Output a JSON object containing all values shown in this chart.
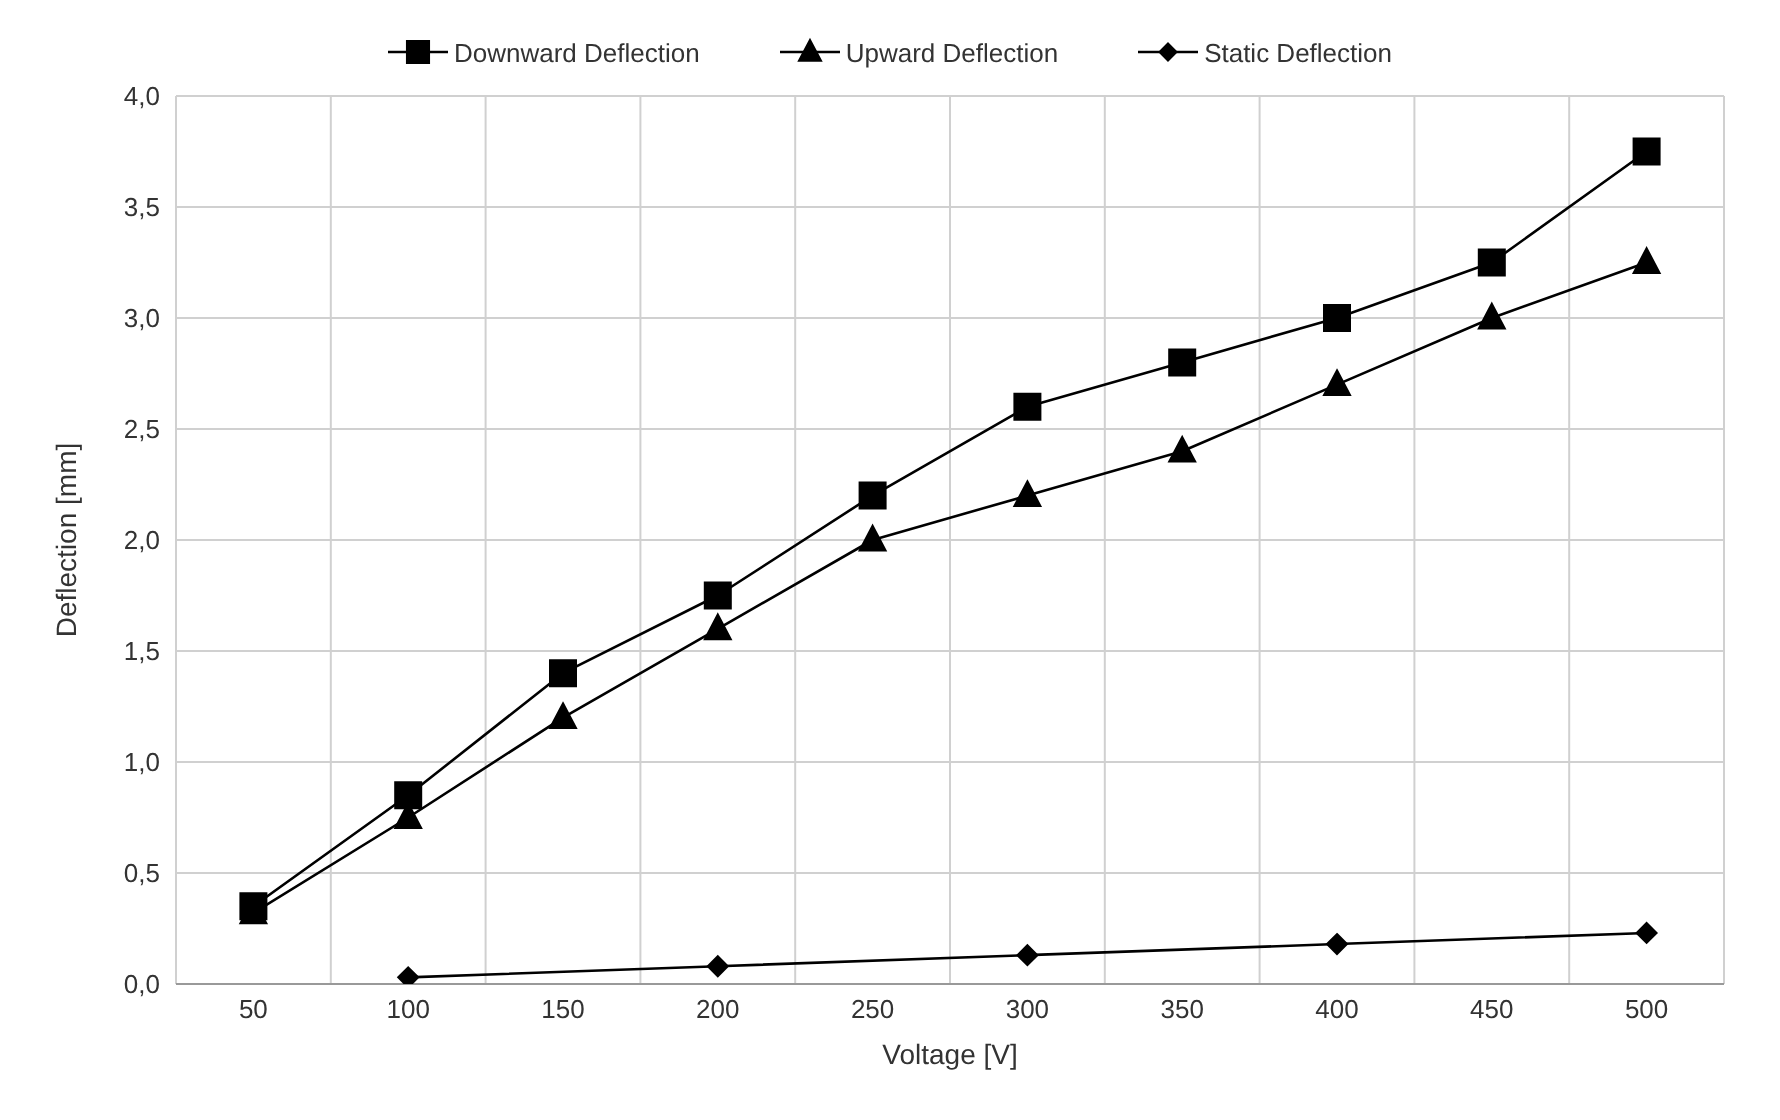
{
  "chart_data": {
    "type": "line",
    "xlabel": "Voltage [V]",
    "ylabel": "Deflection [mm]",
    "categories": [
      "50",
      "100",
      "150",
      "200",
      "250",
      "300",
      "350",
      "400",
      "450",
      "500"
    ],
    "series": [
      {
        "name": "Downward  Deflection",
        "color": "#000000",
        "marker": "square",
        "values": [
          0.35,
          0.85,
          1.4,
          1.75,
          2.2,
          2.6,
          2.8,
          3.0,
          3.25,
          3.75
        ]
      },
      {
        "name": "Upward Deflection",
        "color": "#000000",
        "marker": "triangle",
        "values": [
          0.32,
          0.75,
          1.2,
          1.6,
          2.0,
          2.2,
          2.4,
          2.7,
          3.0,
          3.25
        ]
      },
      {
        "name": "Static Deflection",
        "color": "#000000",
        "marker": "diamond",
        "values": [
          null,
          0.03,
          null,
          0.08,
          null,
          0.13,
          null,
          0.18,
          null,
          0.23
        ]
      }
    ],
    "ylim": [
      0,
      4
    ],
    "yticks": [
      {
        "value": 0,
        "label": "0,0"
      },
      {
        "value": 0.5,
        "label": "0,5"
      },
      {
        "value": 1,
        "label": "1,0"
      },
      {
        "value": 1.5,
        "label": "1,5"
      },
      {
        "value": 2,
        "label": "2,0"
      },
      {
        "value": 2.5,
        "label": "2,5"
      },
      {
        "value": 3,
        "label": "3,0"
      },
      {
        "value": 3.5,
        "label": "3,5"
      },
      {
        "value": 4,
        "label": "4,0"
      }
    ],
    "grid": true,
    "legend": "top",
    "line_style": "solid"
  }
}
